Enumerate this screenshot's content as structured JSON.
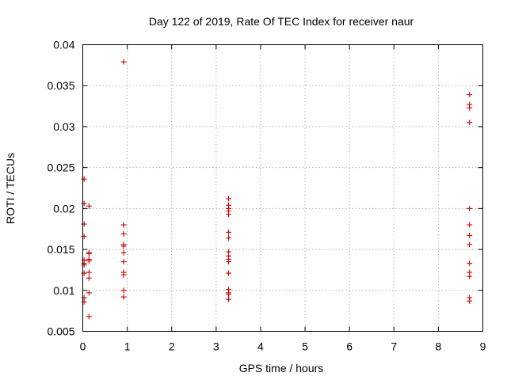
{
  "chart_data": {
    "type": "scatter",
    "title": "Day 122 of 2019, Rate Of TEC Index for receiver naur",
    "xlabel": "GPS time / hours",
    "ylabel": "ROTI / TECUs",
    "xlim": [
      0,
      9
    ],
    "ylim": [
      0.005,
      0.04
    ],
    "x_ticks": [
      0,
      1,
      2,
      3,
      4,
      5,
      6,
      7,
      8,
      9
    ],
    "y_ticks": [
      0.005,
      0.01,
      0.015,
      0.02,
      0.025,
      0.03,
      0.035,
      0.04
    ],
    "x_tick_labels": [
      "0",
      "1",
      "2",
      "3",
      "4",
      "5",
      "6",
      "7",
      "8",
      "9"
    ],
    "y_tick_labels": [
      "0.005",
      "0.01",
      "0.015",
      "0.02",
      "0.025",
      "0.03",
      "0.035",
      "0.04"
    ],
    "grid": true,
    "marker": "+",
    "marker_color": "#cc0000",
    "series": [
      {
        "name": "ROTI",
        "points": [
          [
            0.03,
            0.0236
          ],
          [
            0.03,
            0.0206
          ],
          [
            0.03,
            0.0181
          ],
          [
            0.03,
            0.0166
          ],
          [
            0.03,
            0.0137
          ],
          [
            0.03,
            0.0133
          ],
          [
            0.03,
            0.0131
          ],
          [
            0.03,
            0.0121
          ],
          [
            0.03,
            0.0091
          ],
          [
            0.03,
            0.0086
          ],
          [
            0.14,
            0.0203
          ],
          [
            0.14,
            0.0146
          ],
          [
            0.14,
            0.0145
          ],
          [
            0.14,
            0.0138
          ],
          [
            0.14,
            0.0136
          ],
          [
            0.14,
            0.0122
          ],
          [
            0.14,
            0.0115
          ],
          [
            0.14,
            0.0097
          ],
          [
            0.14,
            0.0068
          ],
          [
            0.92,
            0.0379
          ],
          [
            0.92,
            0.018
          ],
          [
            0.92,
            0.0169
          ],
          [
            0.92,
            0.0156
          ],
          [
            0.92,
            0.0154
          ],
          [
            0.92,
            0.0146
          ],
          [
            0.92,
            0.0135
          ],
          [
            0.92,
            0.0122
          ],
          [
            0.92,
            0.0119
          ],
          [
            0.92,
            0.01
          ],
          [
            0.92,
            0.0092
          ],
          [
            3.28,
            0.0212
          ],
          [
            3.28,
            0.0204
          ],
          [
            3.28,
            0.02
          ],
          [
            3.28,
            0.0197
          ],
          [
            3.28,
            0.0193
          ],
          [
            3.28,
            0.0171
          ],
          [
            3.28,
            0.0164
          ],
          [
            3.28,
            0.0147
          ],
          [
            3.28,
            0.0142
          ],
          [
            3.28,
            0.0138
          ],
          [
            3.28,
            0.0135
          ],
          [
            3.28,
            0.0121
          ],
          [
            3.28,
            0.0101
          ],
          [
            3.28,
            0.0097
          ],
          [
            3.28,
            0.0095
          ],
          [
            3.28,
            0.0089
          ],
          [
            8.7,
            0.0339
          ],
          [
            8.7,
            0.0327
          ],
          [
            8.7,
            0.0323
          ],
          [
            8.7,
            0.0305
          ],
          [
            8.7,
            0.02
          ],
          [
            8.7,
            0.018
          ],
          [
            8.7,
            0.0167
          ],
          [
            8.7,
            0.0156
          ],
          [
            8.7,
            0.0133
          ],
          [
            8.7,
            0.0122
          ],
          [
            8.7,
            0.0117
          ],
          [
            8.7,
            0.0091
          ],
          [
            8.7,
            0.0087
          ]
        ]
      }
    ]
  }
}
